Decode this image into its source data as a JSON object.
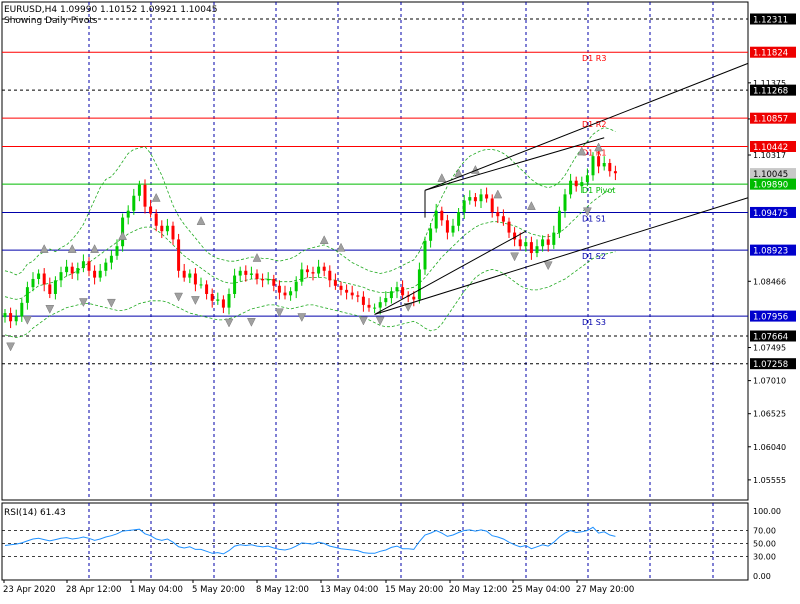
{
  "header": {
    "symbol_line": "EURUSD,H4  1.09990  1.10152  1.09921  1.10045",
    "subtitle": "Showing Daily Pivots"
  },
  "rsi_header": "RSI(14) 61.43",
  "colors": {
    "bull": "#00cc00",
    "bear": "#ff0000",
    "pivot": "#00bb00",
    "resistance": "#ff0000",
    "support": "#0000aa",
    "band": "#22aa22",
    "rsi": "#1e90ff",
    "grid": "#0000aa",
    "badge_red": "#ee0000",
    "badge_green": "#00bb00",
    "badge_black": "#000000",
    "fractal": "#a0a0a0"
  },
  "chart_data": [
    {
      "type": "candlestick",
      "symbol": "EURUSD",
      "timeframe": "H4",
      "ohlc_last": {
        "open": 1.0999,
        "high": 1.10152,
        "low": 1.09921,
        "close": 1.10045
      },
      "ylim": [
        1.0526,
        1.1256
      ],
      "y_ticks": [
        1.11375,
        1.10846,
        1.10317,
        1.08466,
        1.07495,
        1.0701,
        1.06525,
        1.0604,
        1.05555
      ],
      "x_ticks": [
        "23 Apr 2020",
        "28 Apr 12:00",
        "1 May 04:00",
        "5 May 20:00",
        "8 May 12:00",
        "13 May 04:00",
        "15 May 20:00",
        "20 May 12:00",
        "25 May 04:00",
        "27 May 20:00"
      ],
      "pivots": [
        {
          "label": "D1 R3",
          "value": 1.11824,
          "kind": "resistance"
        },
        {
          "label": "D1 R2",
          "value": 1.10857,
          "kind": "resistance"
        },
        {
          "label": "D1 R1",
          "value": 1.10442,
          "kind": "resistance"
        },
        {
          "label": "D1 Pivot",
          "value": 1.0989,
          "kind": "pivot"
        },
        {
          "label": "D1 S1",
          "value": 1.09475,
          "kind": "support"
        },
        {
          "label": "D1 S2",
          "value": 1.08923,
          "kind": "support"
        },
        {
          "label": "D1 S3",
          "value": 1.07956,
          "kind": "support"
        }
      ],
      "price_badges": [
        {
          "value": 1.12311,
          "label": "1.12311",
          "style": "black"
        },
        {
          "value": 1.11824,
          "label": "1.11824",
          "style": "red"
        },
        {
          "value": 1.11268,
          "label": "1.11268",
          "style": "black"
        },
        {
          "value": 1.10857,
          "label": "1.10857",
          "style": "red"
        },
        {
          "value": 1.10442,
          "label": "1.10442",
          "style": "red"
        },
        {
          "value": 1.10045,
          "label": "1.10045",
          "style": "gray"
        },
        {
          "value": 1.0989,
          "label": "1.09890",
          "style": "green"
        },
        {
          "value": 1.09475,
          "label": "1.09475",
          "style": "blue"
        },
        {
          "value": 1.08923,
          "label": "1.08923",
          "style": "blue"
        },
        {
          "value": 1.07956,
          "label": "1.07956",
          "style": "blue"
        },
        {
          "value": 1.07664,
          "label": "1.07664",
          "style": "black"
        },
        {
          "value": 1.07258,
          "label": "1.07258",
          "style": "black"
        }
      ],
      "dashed_levels": [
        1.12311,
        1.11268,
        1.07664,
        1.07258
      ],
      "closes": [
        1.08,
        1.0788,
        1.0795,
        1.0815,
        1.0838,
        1.085,
        1.0858,
        1.0842,
        1.0828,
        1.0848,
        1.086,
        1.0868,
        1.0858,
        1.0866,
        1.0876,
        1.0862,
        1.0852,
        1.0862,
        1.0874,
        1.0884,
        1.0898,
        1.094,
        1.095,
        1.0972,
        1.0988,
        1.0956,
        1.0946,
        1.0928,
        1.092,
        1.0928,
        1.0908,
        1.0862,
        1.0852,
        1.0858,
        1.0842,
        1.0842,
        1.0828,
        1.0818,
        1.082,
        1.0808,
        1.0828,
        1.0855,
        1.0862,
        1.0856,
        1.0858,
        1.085,
        1.0848,
        1.085,
        1.084,
        1.083,
        1.0826,
        1.0832,
        1.0846,
        1.0864,
        1.086,
        1.0858,
        1.0868,
        1.0862,
        1.0848,
        1.084,
        1.0834,
        1.083,
        1.0826,
        1.0824,
        1.0812,
        1.0808,
        1.0808,
        1.0816,
        1.0822,
        1.0832,
        1.0838,
        1.0826,
        1.0824,
        1.082,
        1.0864,
        1.0906,
        1.0924,
        1.095,
        1.0936,
        1.0918,
        1.0928,
        1.0948,
        1.0965,
        1.097,
        1.0964,
        1.0974,
        1.0968,
        1.0948,
        1.0942,
        1.0934,
        1.0918,
        1.0908,
        1.0898,
        1.0904,
        1.0888,
        1.0898,
        1.0908,
        1.09,
        1.0918,
        1.095,
        1.0974,
        1.0994,
        1.0986,
        1.0992,
        1.1002,
        1.103,
        1.1015,
        1.102,
        1.1008,
        1.1005
      ],
      "upper_band": [
        1.0862,
        1.086,
        1.0856,
        1.086,
        1.0872,
        1.0876,
        1.0885,
        1.089,
        1.0894,
        1.089,
        1.0896,
        1.09,
        1.0908,
        1.0918,
        1.093,
        1.0948,
        1.0966,
        1.0984,
        1.0996,
        1.1,
        1.101,
        1.1022,
        1.1034,
        1.104,
        1.1042,
        1.1044,
        1.1034,
        1.1018,
        1.1002,
        1.098,
        1.0958,
        1.0942,
        1.093,
        1.092,
        1.091,
        1.09,
        1.089,
        1.0884,
        1.088,
        1.0878,
        1.0876,
        1.0876,
        1.0878,
        1.088,
        1.0882,
        1.0882,
        1.088,
        1.088,
        1.0878,
        1.0876,
        1.0878,
        1.088,
        1.0884,
        1.089,
        1.0894,
        1.0896,
        1.0898,
        1.09,
        1.0896,
        1.0892,
        1.0886,
        1.088,
        1.0874,
        1.087,
        1.0866,
        1.0862,
        1.086,
        1.0858,
        1.086,
        1.0862,
        1.0866,
        1.087,
        1.0874,
        1.0878,
        1.089,
        1.091,
        1.093,
        1.0952,
        1.097,
        1.0986,
        1.1,
        1.1012,
        1.1022,
        1.103,
        1.1034,
        1.1038,
        1.104,
        1.104,
        1.1038,
        1.1034,
        1.1028,
        1.102,
        1.1012,
        1.1004,
        1.0996,
        1.099,
        1.0986,
        1.0984,
        1.0986,
        1.0992,
        1.1002,
        1.1016,
        1.103,
        1.1042,
        1.1052,
        1.1062,
        1.1068,
        1.1072,
        1.107,
        1.1066
      ],
      "middle_band": [
        1.0824,
        1.0822,
        1.082,
        1.0822,
        1.0828,
        1.0834,
        1.084,
        1.0842,
        1.0844,
        1.0846,
        1.085,
        1.0854,
        1.0858,
        1.0862,
        1.0868,
        1.0874,
        1.088,
        1.0886,
        1.0892,
        1.0898,
        1.0904,
        1.091,
        1.0916,
        1.092,
        1.0924,
        1.0926,
        1.0926,
        1.0922,
        1.0916,
        1.0908,
        1.09,
        1.0892,
        1.0884,
        1.0878,
        1.0872,
        1.0866,
        1.086,
        1.0854,
        1.085,
        1.0846,
        1.0844,
        1.0844,
        1.0846,
        1.0848,
        1.085,
        1.085,
        1.085,
        1.085,
        1.0848,
        1.0846,
        1.0846,
        1.0846,
        1.0848,
        1.085,
        1.0852,
        1.0852,
        1.0852,
        1.0852,
        1.085,
        1.0848,
        1.0846,
        1.0844,
        1.0842,
        1.084,
        1.0838,
        1.0834,
        1.0832,
        1.083,
        1.083,
        1.083,
        1.0832,
        1.0834,
        1.0836,
        1.0838,
        1.0844,
        1.0852,
        1.0862,
        1.0872,
        1.0882,
        1.089,
        1.0898,
        1.0906,
        1.0914,
        1.092,
        1.0926,
        1.093,
        1.0932,
        1.0934,
        1.0934,
        1.0932,
        1.093,
        1.0928,
        1.0924,
        1.092,
        1.0916,
        1.0914,
        1.0912,
        1.0912,
        1.0914,
        1.0918,
        1.0924,
        1.0932,
        1.094,
        1.0948,
        1.0956,
        1.0964,
        1.097,
        1.0976,
        1.098,
        1.0982
      ],
      "lower_band": [
        1.0768,
        1.0766,
        1.0764,
        1.0766,
        1.077,
        1.0778,
        1.0784,
        1.079,
        1.0796,
        1.08,
        1.0804,
        1.0808,
        1.081,
        1.0812,
        1.0814,
        1.0814,
        1.0812,
        1.081,
        1.0808,
        1.0806,
        1.0804,
        1.0804,
        1.0806,
        1.081,
        1.0814,
        1.0816,
        1.0818,
        1.0818,
        1.0818,
        1.0816,
        1.0812,
        1.0808,
        1.0804,
        1.08,
        1.0798,
        1.0796,
        1.0794,
        1.0792,
        1.079,
        1.079,
        1.0792,
        1.0794,
        1.0798,
        1.0802,
        1.0806,
        1.0808,
        1.081,
        1.0812,
        1.0812,
        1.081,
        1.0808,
        1.0806,
        1.0808,
        1.081,
        1.0812,
        1.0812,
        1.081,
        1.0808,
        1.0806,
        1.0804,
        1.0802,
        1.08,
        1.0798,
        1.0796,
        1.0794,
        1.079,
        1.0786,
        1.0782,
        1.078,
        1.078,
        1.0782,
        1.0784,
        1.0786,
        1.0788,
        1.0784,
        1.0778,
        1.0774,
        1.0776,
        1.0784,
        1.0796,
        1.0808,
        1.082,
        1.0832,
        1.0842,
        1.0852,
        1.0858,
        1.0862,
        1.0864,
        1.0862,
        1.0858,
        1.0852,
        1.0846,
        1.084,
        1.0836,
        1.0834,
        1.0834,
        1.0836,
        1.0838,
        1.0842,
        1.0846,
        1.085,
        1.0856,
        1.0862,
        1.0868,
        1.0874,
        1.088,
        1.0884,
        1.0886,
        1.0888,
        1.089
      ],
      "upper_fractals": [
        [
          7,
          1.0893
        ],
        [
          12,
          1.0893
        ],
        [
          16,
          1.0893
        ],
        [
          21,
          1.0912
        ],
        [
          27,
          1.0968
        ],
        [
          35,
          1.0934
        ],
        [
          45,
          1.088
        ],
        [
          57,
          1.0906
        ],
        [
          60,
          1.0895
        ],
        [
          78,
          1.0997
        ],
        [
          81,
          1.1004
        ],
        [
          84,
          1.1009
        ],
        [
          88,
          1.0973
        ],
        [
          94,
          1.0956
        ],
        [
          103,
          1.1036
        ],
        [
          106,
          1.1042
        ]
      ],
      "lower_fractals": [
        [
          1,
          1.0752
        ],
        [
          4,
          1.0791
        ],
        [
          8,
          1.0807
        ],
        [
          14,
          1.0817
        ],
        [
          19,
          1.0816
        ],
        [
          31,
          1.0825
        ],
        [
          34,
          1.082
        ],
        [
          40,
          1.0787
        ],
        [
          44,
          1.0788
        ],
        [
          49,
          1.0802
        ],
        [
          53,
          1.0795
        ],
        [
          64,
          1.079
        ],
        [
          67,
          1.079
        ],
        [
          72,
          1.081
        ],
        [
          91,
          1.0884
        ],
        [
          97,
          1.0871
        ],
        [
          104,
          1.095
        ]
      ],
      "channel_lines": [
        {
          "from": [
            66,
            1.0798
          ],
          "to": [
            93,
            1.092
          ]
        },
        {
          "from": [
            75,
            1.098
          ],
          "to": [
            107,
            1.1057
          ]
        }
      ],
      "channel_outer_rays": [
        {
          "from": [
            66,
            1.0798
          ],
          "to_right": 1.0969
        },
        {
          "from": [
            75,
            1.098
          ],
          "to_right": 1.1166
        }
      ]
    },
    {
      "type": "line",
      "name": "RSI(14)",
      "ylim": [
        0,
        100
      ],
      "y_ticks": [
        "100.00",
        "70.00",
        "50.00",
        "30.00",
        "0.00"
      ],
      "levels": [
        70,
        50,
        30
      ],
      "values": [
        47,
        48,
        49,
        51,
        54,
        57,
        58,
        56,
        54,
        56,
        58,
        59,
        57,
        58,
        60,
        58,
        55,
        57,
        60,
        62,
        65,
        69,
        70,
        71,
        72,
        65,
        62,
        57,
        55,
        57,
        52,
        45,
        43,
        45,
        41,
        41,
        38,
        35,
        36,
        34,
        39,
        46,
        48,
        47,
        48,
        46,
        45,
        46,
        43,
        41,
        40,
        42,
        46,
        51,
        50,
        49,
        52,
        50,
        46,
        44,
        42,
        41,
        40,
        39,
        36,
        35,
        35,
        38,
        40,
        44,
        46,
        42,
        42,
        41,
        53,
        63,
        66,
        70,
        66,
        61,
        63,
        67,
        70,
        71,
        69,
        71,
        69,
        62,
        60,
        57,
        52,
        48,
        45,
        47,
        42,
        45,
        48,
        46,
        52,
        60,
        66,
        70,
        67,
        68,
        70,
        75,
        66,
        68,
        63,
        61
      ]
    }
  ]
}
